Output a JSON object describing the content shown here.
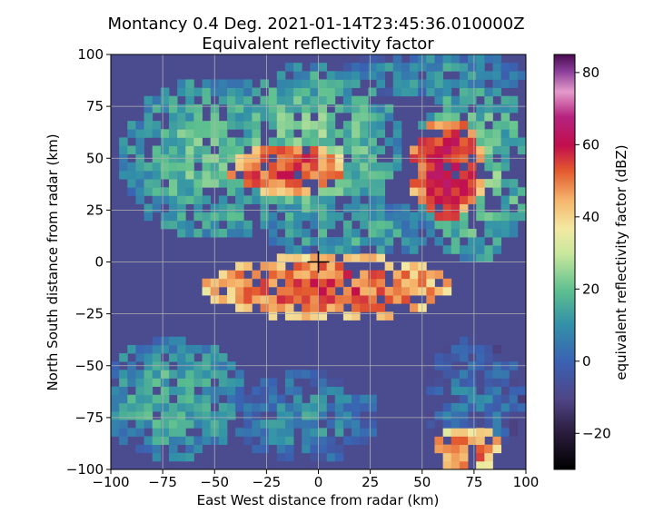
{
  "chart_data": {
    "type": "heatmap",
    "title": "Montancy 0.4 Deg. 2021-01-14T23:45:36.010000Z",
    "subtitle": "Equivalent reflectivity factor",
    "xlabel": "East West distance from radar (km)",
    "ylabel": "North South distance from radar (km)",
    "xlim": [
      -100,
      100
    ],
    "ylim": [
      -100,
      100
    ],
    "xticks": [
      -100,
      -75,
      -50,
      -25,
      0,
      25,
      50,
      75,
      100
    ],
    "yticks": [
      -100,
      -75,
      -50,
      -25,
      0,
      25,
      50,
      75,
      100
    ],
    "grid": true,
    "radar_marker": {
      "x": 0,
      "y": 0,
      "symbol": "+"
    },
    "colorbar": {
      "label": "equivalent reflectivity factor (dBZ)",
      "range": [
        -30,
        85
      ],
      "ticks": [
        -20,
        0,
        20,
        40,
        60,
        80
      ],
      "colormap": "pyart_HomeyerRainbow"
    },
    "background_dbz": -8,
    "echo_regions": [
      {
        "name": "northwest broad precipitation",
        "x": -50,
        "y": 50,
        "rx": 45,
        "ry": 40,
        "dbz": 18
      },
      {
        "name": "north central precipitation",
        "x": -5,
        "y": 55,
        "rx": 45,
        "ry": 40,
        "dbz": 20
      },
      {
        "name": "east broad precipitation",
        "x": 75,
        "y": 45,
        "rx": 30,
        "ry": 45,
        "dbz": 20
      },
      {
        "name": "northeast light band",
        "x": 55,
        "y": 90,
        "rx": 45,
        "ry": 12,
        "dbz": 10
      },
      {
        "name": "central light echoes",
        "x": 15,
        "y": 15,
        "rx": 40,
        "ry": 15,
        "dbz": 14
      },
      {
        "name": "southwest band",
        "x": -70,
        "y": -65,
        "rx": 35,
        "ry": 30,
        "dbz": 15
      },
      {
        "name": "south-central light echoes",
        "x": -5,
        "y": -75,
        "rx": 35,
        "ry": 22,
        "dbz": 8
      },
      {
        "name": "southeast light echoes",
        "x": 75,
        "y": -65,
        "rx": 25,
        "ry": 28,
        "dbz": 4
      },
      {
        "name": "convective line near radar",
        "x": 5,
        "y": -12,
        "rx": 60,
        "ry": 16,
        "dbz": 52
      },
      {
        "name": "northwest convective cell",
        "x": -15,
        "y": 45,
        "rx": 28,
        "ry": 12,
        "dbz": 55
      },
      {
        "name": "northeast convective cluster",
        "x": 62,
        "y": 45,
        "rx": 18,
        "ry": 25,
        "dbz": 58
      },
      {
        "name": "far southeast convective band",
        "x": 72,
        "y": -90,
        "rx": 18,
        "ry": 10,
        "dbz": 50
      }
    ]
  }
}
